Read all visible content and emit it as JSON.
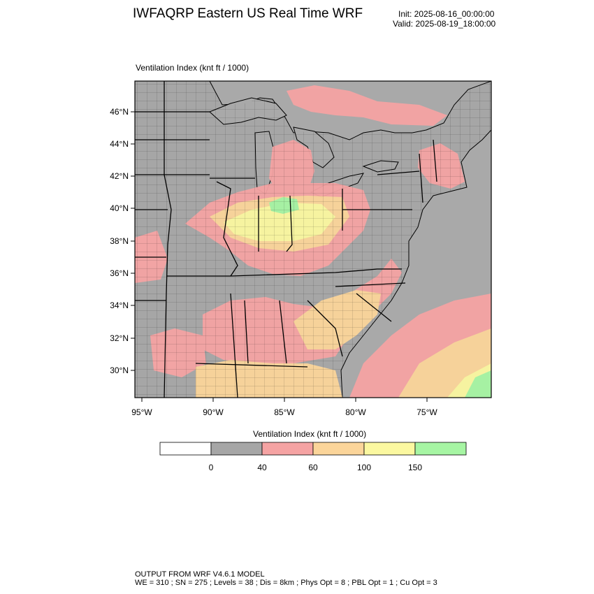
{
  "header": {
    "title": "IWFAQRP Eastern US Real Time WRF",
    "init": "Init: 2025-08-16_00:00:00",
    "valid": "Valid: 2025-08-19_18:00:00"
  },
  "field_label": "Ventilation Index   (knt ft / 1000)",
  "map": {
    "lat_labels": [
      "46°N",
      "44°N",
      "42°N",
      "40°N",
      "38°N",
      "36°N",
      "34°N",
      "32°N",
      "30°N"
    ],
    "lon_labels": [
      "95°W",
      "90°W",
      "85°W",
      "80°W",
      "75°W"
    ],
    "colors": {
      "water": "#a9a9a9",
      "land_low": "#a6a6a6",
      "pink": "#f5a3a3",
      "orange": "#fbd59a",
      "yellow": "#fbf8a0",
      "green": "#a6f5a3",
      "border": "#000000"
    }
  },
  "colorbar": {
    "title": "Ventilation Index  (knt ft / 1000)",
    "colors": [
      "#ffffff",
      "#a6a6a6",
      "#f5a3a3",
      "#fbd59a",
      "#fbf8a0",
      "#a6f5a3"
    ],
    "tick_labels": [
      "0",
      "40",
      "60",
      "100",
      "150"
    ]
  },
  "footer": {
    "line1": "OUTPUT FROM WRF V4.6.1 MODEL",
    "line2": "WE = 310 ; SN = 275 ; Levels = 38 ; Dis = 8km ; Phys Opt = 8 ; PBL Opt = 1 ; Cu Opt = 3"
  }
}
